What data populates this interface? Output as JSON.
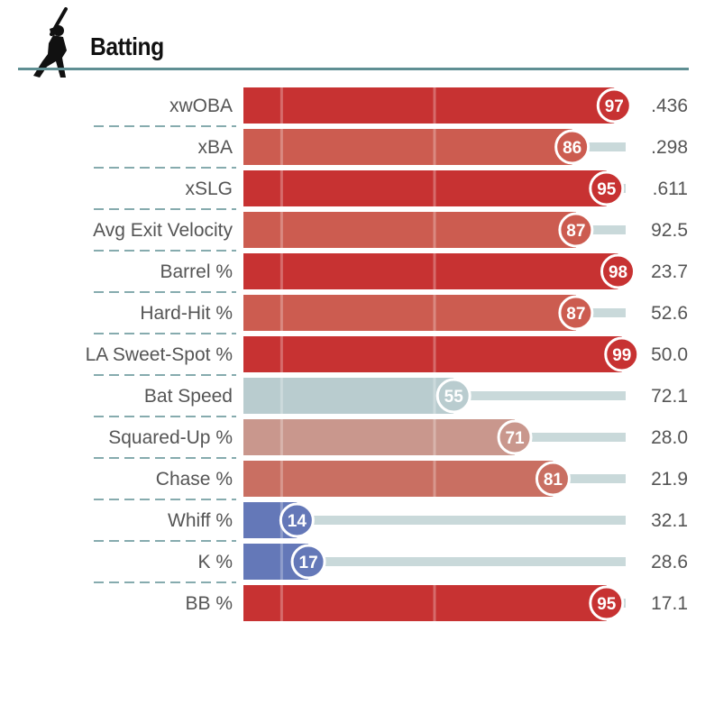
{
  "header": {
    "title": "Batting",
    "icon": "baseball-batter-icon"
  },
  "colors": {
    "rule": "#5f8f93",
    "separator": "#5f8f93",
    "track": "#c9d9da",
    "red_strong": "#c73232",
    "red_medium": "#cc5c50",
    "red_soft": "#c9978d",
    "red_mid2": "#c96f62",
    "neutral": "#b9cccf",
    "blue": "#6478b8"
  },
  "chart_data": {
    "type": "bar",
    "orientation": "horizontal",
    "title": "Batting",
    "xlim": [
      0,
      100
    ],
    "categories": [
      "xwOBA",
      "xBA",
      "xSLG",
      "Avg Exit Velocity",
      "Barrel %",
      "Hard-Hit %",
      "LA Sweet-Spot %",
      "Bat Speed",
      "Squared-Up %",
      "Chase %",
      "Whiff %",
      "K %",
      "BB %"
    ],
    "percentiles": [
      97,
      86,
      95,
      87,
      98,
      87,
      99,
      55,
      71,
      81,
      14,
      17,
      95
    ],
    "values": [
      ".436",
      ".298",
      ".611",
      "92.5",
      "23.7",
      "52.6",
      "50.0",
      "72.1",
      "28.0",
      "21.9",
      "32.1",
      "28.6",
      "17.1"
    ],
    "bar_colors": [
      "#c73232",
      "#cc5c50",
      "#c73232",
      "#cc5c50",
      "#c73232",
      "#cc5c50",
      "#c73232",
      "#b9cccf",
      "#c9978d",
      "#c96f62",
      "#6478b8",
      "#6478b8",
      "#c73232"
    ],
    "reference_lines": [
      10,
      50
    ]
  }
}
